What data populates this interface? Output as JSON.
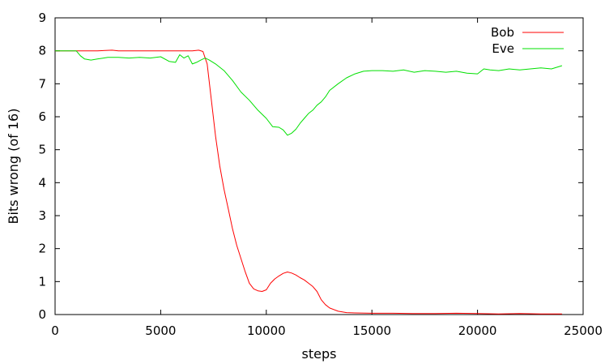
{
  "chart_data": {
    "type": "line",
    "title": "",
    "xlabel": "steps",
    "ylabel": "Bits wrong (of 16)",
    "xlim": [
      0,
      25000
    ],
    "ylim": [
      0,
      9
    ],
    "xticks": [
      0,
      5000,
      10000,
      15000,
      20000,
      25000
    ],
    "yticks": [
      0,
      1,
      2,
      3,
      4,
      5,
      6,
      7,
      8,
      9
    ],
    "grid": false,
    "legend_position": "top-right",
    "series": [
      {
        "name": "Bob",
        "color": "#ff0000",
        "x": [
          0,
          1000,
          2000,
          2700,
          3000,
          4000,
          5000,
          6000,
          6500,
          6800,
          7000,
          7200,
          7400,
          7600,
          7800,
          8000,
          8200,
          8400,
          8600,
          8800,
          9000,
          9200,
          9400,
          9600,
          9800,
          10000,
          10200,
          10400,
          10600,
          10800,
          11000,
          11200,
          11400,
          11600,
          11800,
          12000,
          12200,
          12400,
          12600,
          12800,
          13000,
          13400,
          13800,
          14200,
          15000,
          16000,
          17000,
          18000,
          19000,
          20000,
          21000,
          22000,
          23000,
          24000
        ],
        "values": [
          8.0,
          8.0,
          8.0,
          8.02,
          8.0,
          8.0,
          8.0,
          8.0,
          8.0,
          8.02,
          7.98,
          7.6,
          6.5,
          5.4,
          4.5,
          3.8,
          3.2,
          2.6,
          2.1,
          1.7,
          1.3,
          0.95,
          0.78,
          0.72,
          0.7,
          0.75,
          0.95,
          1.08,
          1.17,
          1.25,
          1.29,
          1.26,
          1.2,
          1.12,
          1.05,
          0.95,
          0.85,
          0.7,
          0.45,
          0.3,
          0.2,
          0.1,
          0.06,
          0.05,
          0.04,
          0.04,
          0.03,
          0.03,
          0.04,
          0.03,
          0.02,
          0.03,
          0.02,
          0.02
        ]
      },
      {
        "name": "Eve",
        "color": "#00e000",
        "x": [
          0,
          1000,
          1200,
          1400,
          1700,
          2000,
          2500,
          3000,
          3500,
          4000,
          4500,
          5000,
          5400,
          5700,
          5900,
          6100,
          6300,
          6500,
          6700,
          6900,
          7100,
          7300,
          7600,
          8000,
          8400,
          8800,
          9200,
          9600,
          10000,
          10300,
          10600,
          10800,
          11000,
          11200,
          11400,
          11600,
          11800,
          12000,
          12200,
          12400,
          12600,
          12800,
          13000,
          13400,
          13800,
          14200,
          14600,
          15000,
          15500,
          16000,
          16500,
          17000,
          17500,
          18000,
          18500,
          19000,
          19500,
          20000,
          20300,
          20600,
          21000,
          21500,
          22000,
          22500,
          23000,
          23500,
          24000
        ],
        "values": [
          8.0,
          8.0,
          7.85,
          7.75,
          7.72,
          7.75,
          7.8,
          7.8,
          7.78,
          7.8,
          7.78,
          7.82,
          7.68,
          7.65,
          7.88,
          7.78,
          7.85,
          7.6,
          7.65,
          7.72,
          7.78,
          7.72,
          7.6,
          7.4,
          7.1,
          6.75,
          6.5,
          6.2,
          5.95,
          5.7,
          5.68,
          5.6,
          5.44,
          5.5,
          5.62,
          5.8,
          5.95,
          6.1,
          6.2,
          6.35,
          6.45,
          6.6,
          6.8,
          7.0,
          7.18,
          7.3,
          7.38,
          7.4,
          7.4,
          7.38,
          7.42,
          7.35,
          7.4,
          7.38,
          7.35,
          7.38,
          7.32,
          7.3,
          7.45,
          7.42,
          7.4,
          7.45,
          7.42,
          7.45,
          7.48,
          7.45,
          7.55
        ]
      }
    ]
  }
}
